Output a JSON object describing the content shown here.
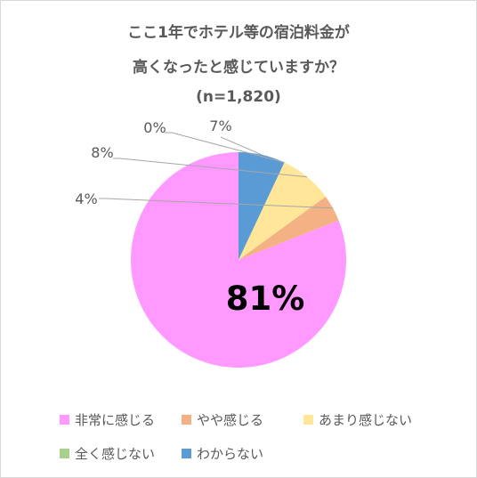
{
  "chart_data": {
    "type": "pie",
    "title": "ここ1年でホテル等の宿泊料金が高くなったと感じていますか？",
    "title_lines": [
      "ここ1年でホテル等の宿泊料金が",
      "高くなったと感じていますか？"
    ],
    "subtitle": "(n=1,820)",
    "categories": [
      "非常に感じる",
      "やや感じる",
      "あまり感じない",
      "全く感じない",
      "わからない"
    ],
    "values": [
      81,
      4,
      8,
      0,
      7
    ],
    "labels": [
      "81%",
      "4%",
      "8%",
      "0%",
      "7%"
    ],
    "colors": [
      "#ff99ff",
      "#f4b183",
      "#ffe699",
      "#a9d18e",
      "#5b9bd5"
    ],
    "legend_position": "bottom",
    "start_angle": "12 o'clock",
    "direction": "counterclockwise"
  }
}
